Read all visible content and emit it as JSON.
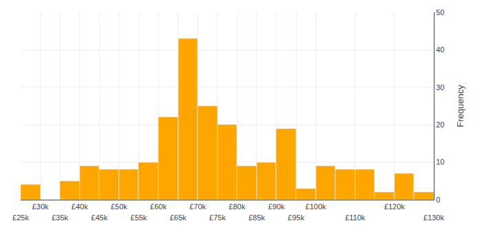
{
  "chart_data": {
    "type": "histogram",
    "bins": [
      25000,
      30000,
      35000,
      40000,
      45000,
      50000,
      55000,
      60000,
      65000,
      70000,
      75000,
      80000,
      85000,
      90000,
      95000,
      100000,
      105000,
      110000,
      115000,
      120000,
      125000,
      130000
    ],
    "values": [
      4,
      0,
      5,
      9,
      8,
      8,
      10,
      22,
      43,
      25,
      20,
      9,
      10,
      19,
      3,
      9,
      8,
      8,
      2,
      7,
      2
    ],
    "color": "#FFA500",
    "y_label": "Frequency",
    "xlim": [
      25000,
      130000
    ],
    "xticks": [
      {
        "value": 25000,
        "label": "£25k"
      },
      {
        "value": 30000,
        "label": "£30k"
      },
      {
        "value": 35000,
        "label": "£35k"
      },
      {
        "value": 40000,
        "label": "£40k"
      },
      {
        "value": 45000,
        "label": "£45k"
      },
      {
        "value": 50000,
        "label": "£50k"
      },
      {
        "value": 55000,
        "label": "£55k"
      },
      {
        "value": 60000,
        "label": "£60k"
      },
      {
        "value": 65000,
        "label": "£65k"
      },
      {
        "value": 70000,
        "label": "£70k"
      },
      {
        "value": 75000,
        "label": "£75k"
      },
      {
        "value": 80000,
        "label": "£80k"
      },
      {
        "value": 85000,
        "label": "£85k"
      },
      {
        "value": 90000,
        "label": "£90k"
      },
      {
        "value": 95000,
        "label": "£95k"
      },
      {
        "value": 100000,
        "label": "£100k"
      },
      {
        "value": 110000,
        "label": "£110k"
      },
      {
        "value": 120000,
        "label": "£120k"
      },
      {
        "value": 130000,
        "label": "£130k"
      }
    ],
    "ylim": [
      0,
      50
    ],
    "yticks": [
      0,
      10,
      20,
      30,
      40,
      50
    ],
    "grid": true
  }
}
